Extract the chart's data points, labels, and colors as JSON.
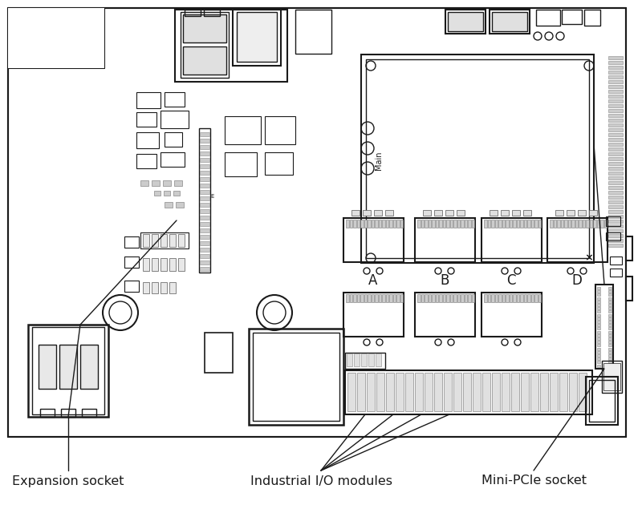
{
  "bg_color": "#ffffff",
  "line_color": "#1a1a1a",
  "labels": {
    "expansion_socket": "Expansion socket",
    "industrial_io": "Industrial I/O modules",
    "mini_pcie": "Mini-PCIe socket"
  },
  "figsize": [
    8.0,
    6.4
  ],
  "dpi": 100,
  "label_fontsize": 11.5
}
